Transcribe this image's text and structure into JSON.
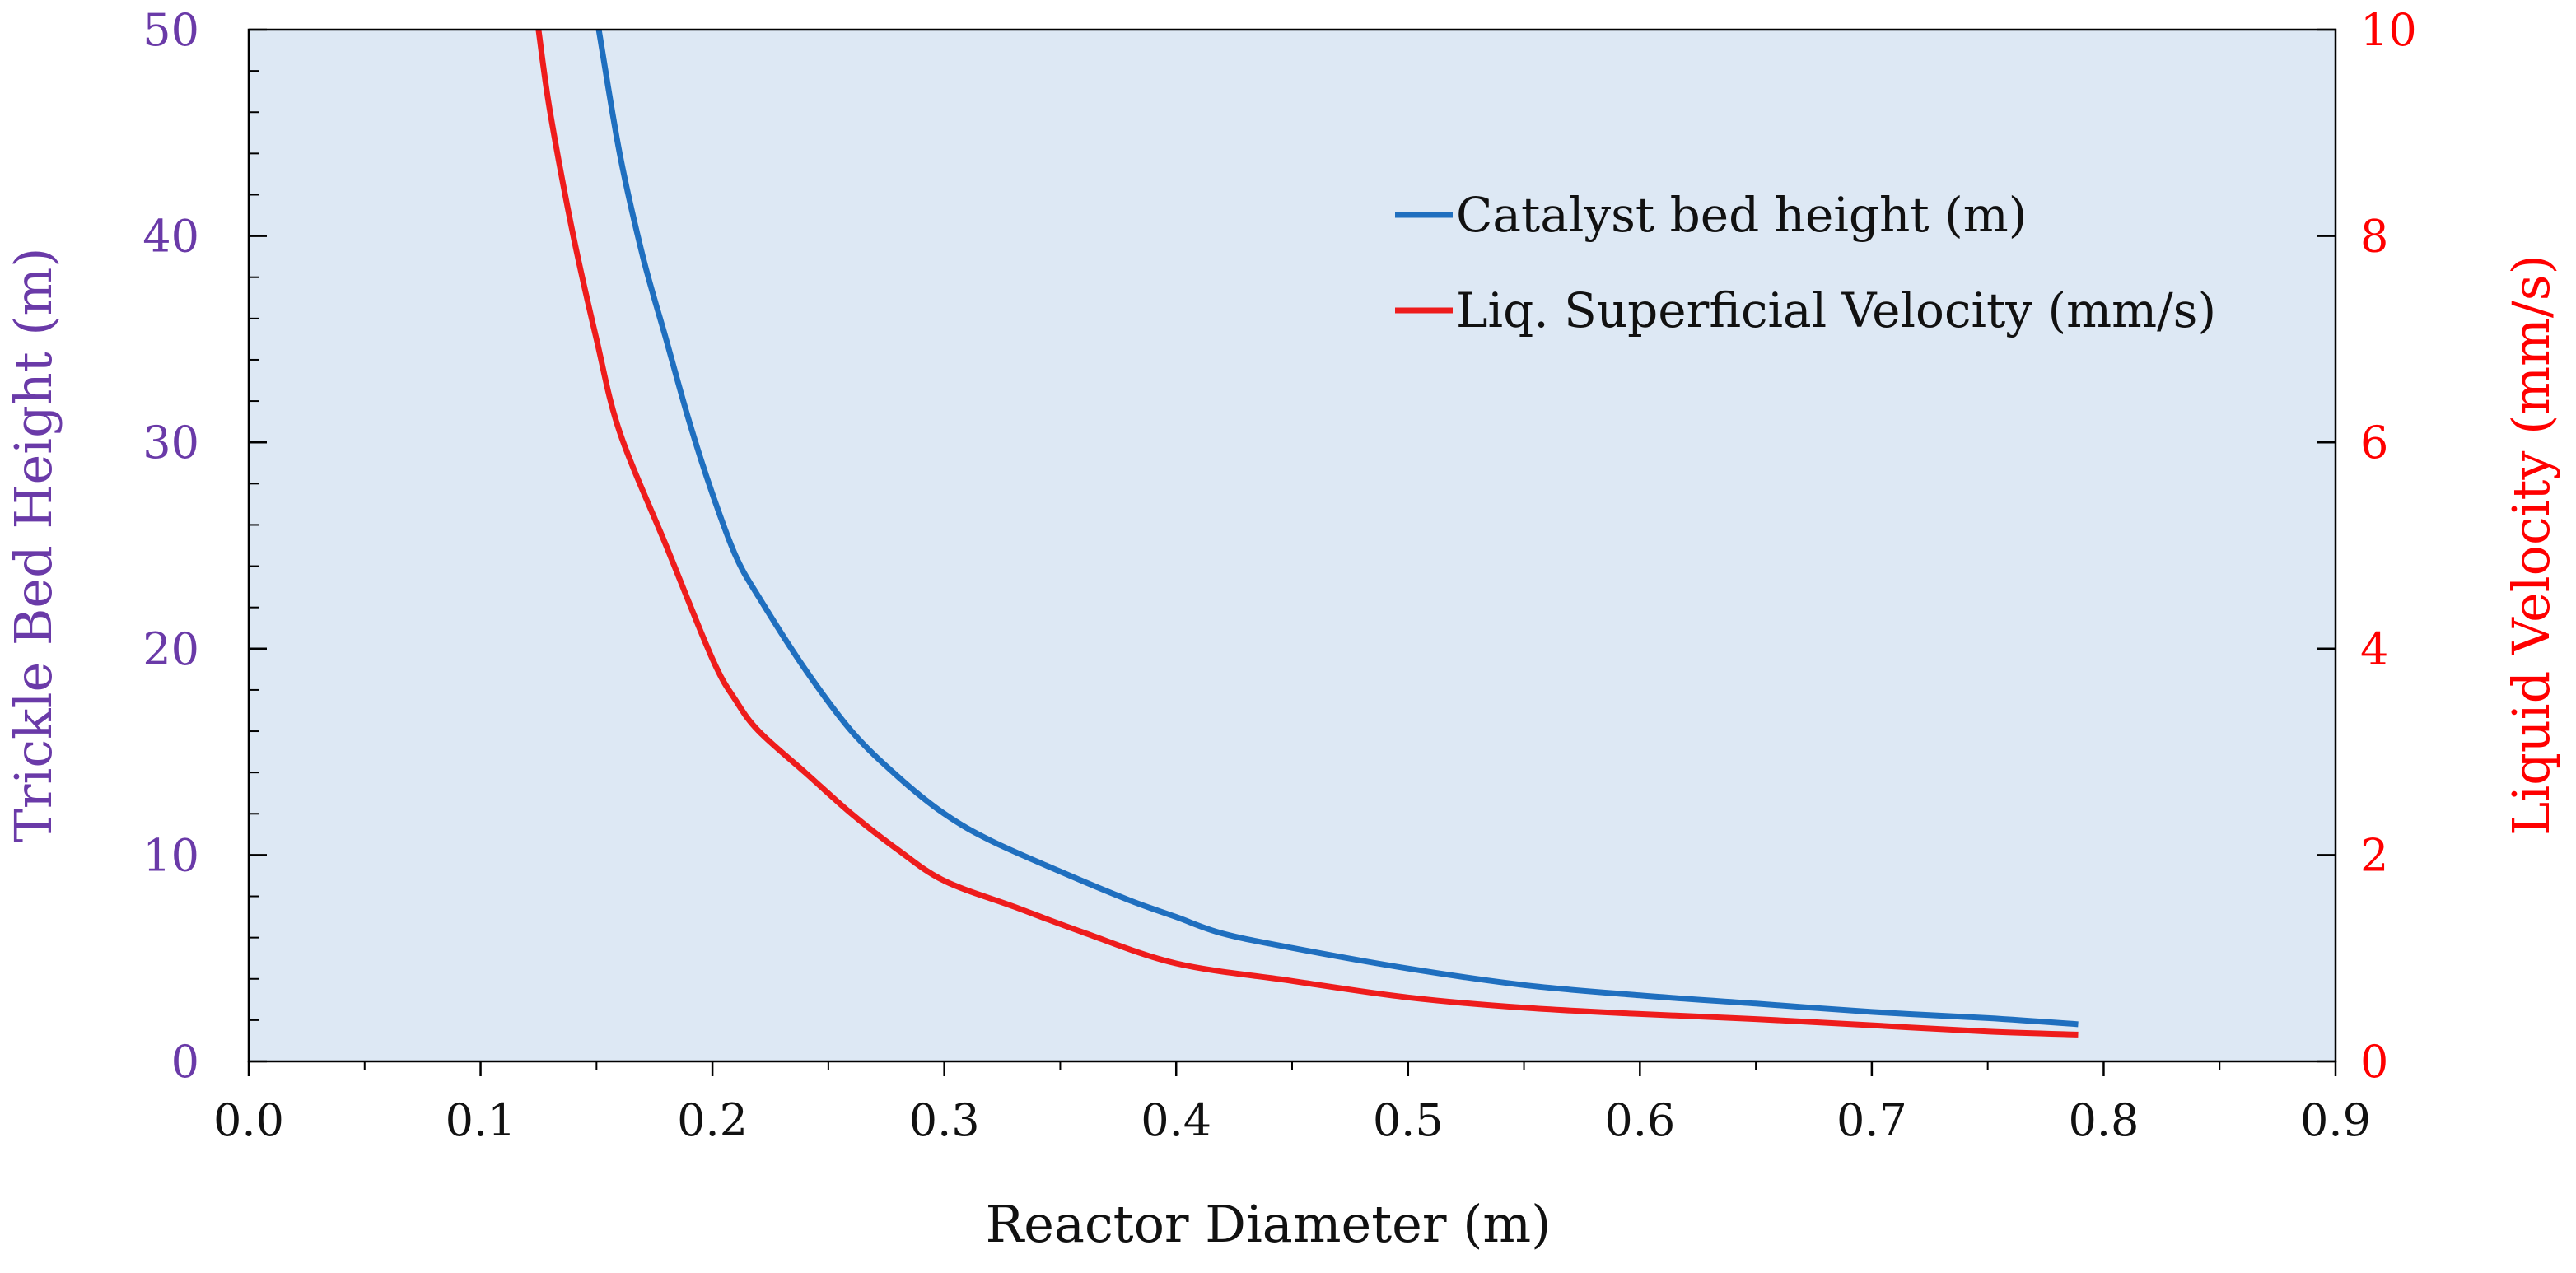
{
  "chart_data": {
    "type": "line",
    "title": "",
    "xlabel": "Reactor Diameter (m)",
    "ylabel_left": "Trickle Bed Height (m)",
    "ylabel_right": "Liquid Velocity (mm/s)",
    "xlim": [
      0.0,
      0.9
    ],
    "ylim_left": [
      0,
      50
    ],
    "ylim_right": [
      0,
      10
    ],
    "x_ticks": [
      "0.0",
      "0.1",
      "0.2",
      "0.3",
      "0.4",
      "0.5",
      "0.6",
      "0.7",
      "0.8",
      "0.9"
    ],
    "y_left_ticks": [
      "0",
      "10",
      "20",
      "30",
      "40",
      "50"
    ],
    "y_right_ticks": [
      "0",
      "2",
      "4",
      "6",
      "8",
      "10"
    ],
    "grid": false,
    "legend_position": "top-right",
    "colors": {
      "plot_background": "#dde8f4",
      "left_axis": "#6a3aa8",
      "right_axis": "#ff0000",
      "axis_line": "#000000"
    },
    "series": [
      {
        "name": "Catalyst bed height (m)",
        "axis": "left",
        "color": "#1f6fbf",
        "x": [
          0.151,
          0.16,
          0.17,
          0.18,
          0.19,
          0.2,
          0.21,
          0.22,
          0.24,
          0.26,
          0.28,
          0.3,
          0.32,
          0.35,
          0.38,
          0.4,
          0.42,
          0.45,
          0.5,
          0.55,
          0.6,
          0.65,
          0.7,
          0.75,
          0.789
        ],
        "y": [
          50.0,
          44.0,
          39.0,
          35.0,
          31.0,
          27.5,
          24.5,
          22.5,
          19.0,
          16.0,
          13.8,
          12.0,
          10.7,
          9.2,
          7.8,
          7.0,
          6.2,
          5.5,
          4.5,
          3.7,
          3.2,
          2.8,
          2.4,
          2.1,
          1.8
        ]
      },
      {
        "name": "Liq. Superficial Velocity (mm/s)",
        "axis": "right",
        "color": "#ee1c1c",
        "x": [
          0.125,
          0.13,
          0.14,
          0.15,
          0.16,
          0.18,
          0.2,
          0.21,
          0.22,
          0.24,
          0.26,
          0.28,
          0.3,
          0.33,
          0.36,
          0.4,
          0.45,
          0.5,
          0.55,
          0.6,
          0.65,
          0.7,
          0.75,
          0.789
        ],
        "y": [
          10.0,
          9.2,
          8.0,
          7.0,
          6.1,
          5.0,
          3.9,
          3.5,
          3.2,
          2.8,
          2.4,
          2.05,
          1.75,
          1.5,
          1.25,
          0.95,
          0.78,
          0.62,
          0.52,
          0.46,
          0.41,
          0.35,
          0.29,
          0.26
        ]
      }
    ]
  }
}
